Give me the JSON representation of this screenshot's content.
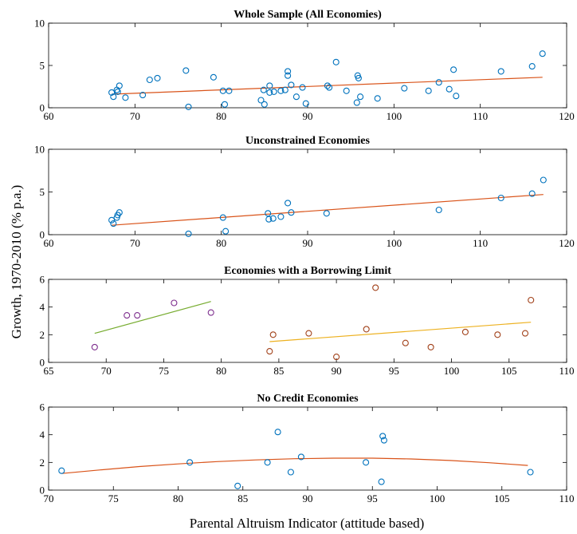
{
  "figure": {
    "xlabel": "Parental Altruism Indicator (attitude based)",
    "ylabel": "Growth, 1970-2010 (% p.a.)"
  },
  "colors": {
    "blue": "#0072BD",
    "orange": "#D95319",
    "yellow": "#EDB120",
    "purple": "#7E2F8E",
    "green": "#77AC30",
    "brown": "#A2421B"
  },
  "chart_data": [
    {
      "type": "scatter",
      "title": "Whole Sample (All Economies)",
      "xlim": [
        60,
        120
      ],
      "ylim": [
        0,
        10
      ],
      "xticks": [
        60,
        70,
        80,
        90,
        100,
        110,
        120
      ],
      "yticks": [
        0,
        5,
        10
      ],
      "series": [
        {
          "marker_color": "blue",
          "points": [
            [
              67.3,
              1.8
            ],
            [
              67.5,
              1.3
            ],
            [
              67.9,
              2.1
            ],
            [
              68.0,
              1.9
            ],
            [
              68.2,
              2.6
            ],
            [
              68.9,
              1.2
            ],
            [
              70.9,
              1.5
            ],
            [
              71.7,
              3.3
            ],
            [
              72.6,
              3.5
            ],
            [
              75.9,
              4.4
            ],
            [
              76.2,
              0.1
            ],
            [
              79.1,
              3.6
            ],
            [
              80.2,
              2.0
            ],
            [
              80.4,
              0.4
            ],
            [
              80.9,
              2.0
            ],
            [
              84.6,
              0.9
            ],
            [
              84.9,
              2.1
            ],
            [
              85.0,
              0.4
            ],
            [
              85.6,
              2.6
            ],
            [
              85.6,
              1.8
            ],
            [
              86.1,
              1.9
            ],
            [
              86.9,
              2.0
            ],
            [
              87.4,
              2.1
            ],
            [
              87.7,
              4.3
            ],
            [
              87.7,
              3.8
            ],
            [
              88.1,
              2.7
            ],
            [
              88.7,
              1.3
            ],
            [
              89.4,
              2.4
            ],
            [
              89.8,
              0.5
            ],
            [
              92.3,
              2.6
            ],
            [
              92.5,
              2.4
            ],
            [
              93.3,
              5.4
            ],
            [
              94.5,
              2.0
            ],
            [
              95.7,
              0.6
            ],
            [
              95.8,
              3.8
            ],
            [
              95.9,
              3.5
            ],
            [
              96.1,
              1.3
            ],
            [
              98.1,
              1.1
            ],
            [
              101.2,
              2.3
            ],
            [
              104.0,
              2.0
            ],
            [
              105.2,
              3.0
            ],
            [
              106.4,
              2.2
            ],
            [
              106.9,
              4.5
            ],
            [
              107.2,
              1.4
            ],
            [
              112.4,
              4.3
            ],
            [
              116.0,
              4.9
            ],
            [
              117.2,
              6.4
            ]
          ]
        }
      ],
      "fits": [
        {
          "color": "orange",
          "x": [
            67.3,
            117.2
          ],
          "y": [
            1.6,
            3.6
          ]
        }
      ]
    },
    {
      "type": "scatter",
      "title": "Unconstrained Economies",
      "xlim": [
        60,
        120
      ],
      "ylim": [
        0,
        10
      ],
      "xticks": [
        60,
        70,
        80,
        90,
        100,
        110,
        120
      ],
      "yticks": [
        0,
        5,
        10
      ],
      "series": [
        {
          "marker_color": "blue",
          "points": [
            [
              67.3,
              1.7
            ],
            [
              67.5,
              1.3
            ],
            [
              67.9,
              2.0
            ],
            [
              68.0,
              2.3
            ],
            [
              68.2,
              2.6
            ],
            [
              76.2,
              0.1
            ],
            [
              80.2,
              2.0
            ],
            [
              80.5,
              0.4
            ],
            [
              85.4,
              2.5
            ],
            [
              85.5,
              1.8
            ],
            [
              86.0,
              1.9
            ],
            [
              86.9,
              2.1
            ],
            [
              87.7,
              3.7
            ],
            [
              88.1,
              2.6
            ],
            [
              92.2,
              2.5
            ],
            [
              105.2,
              2.9
            ],
            [
              112.4,
              4.3
            ],
            [
              116.0,
              4.8
            ],
            [
              117.3,
              6.4
            ]
          ]
        }
      ],
      "fits": [
        {
          "color": "orange",
          "x": [
            67.3,
            117.3
          ],
          "y": [
            1.1,
            4.7
          ]
        }
      ]
    },
    {
      "type": "scatter",
      "title": "Economies with a Borrowing Limit",
      "xlim": [
        65,
        110
      ],
      "ylim": [
        0,
        6
      ],
      "xticks": [
        65,
        70,
        75,
        80,
        85,
        90,
        95,
        100,
        105,
        110
      ],
      "yticks": [
        0,
        2,
        4,
        6
      ],
      "series": [
        {
          "marker_color": "purple",
          "points": [
            [
              69.0,
              1.1
            ],
            [
              71.8,
              3.4
            ],
            [
              72.7,
              3.4
            ],
            [
              75.9,
              4.3
            ],
            [
              79.1,
              3.6
            ]
          ]
        },
        {
          "marker_color": "brown",
          "points": [
            [
              84.2,
              0.8
            ],
            [
              84.5,
              2.0
            ],
            [
              87.6,
              2.1
            ],
            [
              90.0,
              0.4
            ],
            [
              92.6,
              2.4
            ],
            [
              93.4,
              5.4
            ],
            [
              96.0,
              1.4
            ],
            [
              98.2,
              1.1
            ],
            [
              101.2,
              2.2
            ],
            [
              104.0,
              2.0
            ],
            [
              106.4,
              2.1
            ],
            [
              106.9,
              4.5
            ]
          ]
        }
      ],
      "fits": [
        {
          "color": "green",
          "x": [
            69.0,
            79.1
          ],
          "y": [
            2.1,
            4.4
          ]
        },
        {
          "color": "yellow",
          "x": [
            84.2,
            106.9
          ],
          "y": [
            1.5,
            2.9
          ]
        }
      ]
    },
    {
      "type": "scatter",
      "title": "No Credit Economies",
      "xlim": [
        70,
        110
      ],
      "ylim": [
        0,
        6
      ],
      "xticks": [
        70,
        75,
        80,
        85,
        90,
        95,
        100,
        105,
        110
      ],
      "yticks": [
        0,
        2,
        4,
        6
      ],
      "series": [
        {
          "marker_color": "blue",
          "points": [
            [
              71.0,
              1.4
            ],
            [
              80.9,
              2.0
            ],
            [
              84.6,
              0.3
            ],
            [
              86.9,
              2.0
            ],
            [
              87.7,
              4.2
            ],
            [
              88.7,
              1.3
            ],
            [
              89.5,
              2.4
            ],
            [
              94.5,
              2.0
            ],
            [
              95.7,
              0.6
            ],
            [
              95.8,
              3.9
            ],
            [
              95.9,
              3.6
            ],
            [
              107.2,
              1.3
            ]
          ]
        }
      ],
      "fits": [
        {
          "color": "orange",
          "x": [
            71,
            74,
            77,
            80,
            83,
            86,
            89,
            92,
            95,
            98,
            101,
            104,
            107
          ],
          "y": [
            1.2,
            1.46,
            1.7,
            1.89,
            2.06,
            2.18,
            2.27,
            2.31,
            2.31,
            2.25,
            2.14,
            1.98,
            1.78
          ]
        }
      ]
    }
  ]
}
